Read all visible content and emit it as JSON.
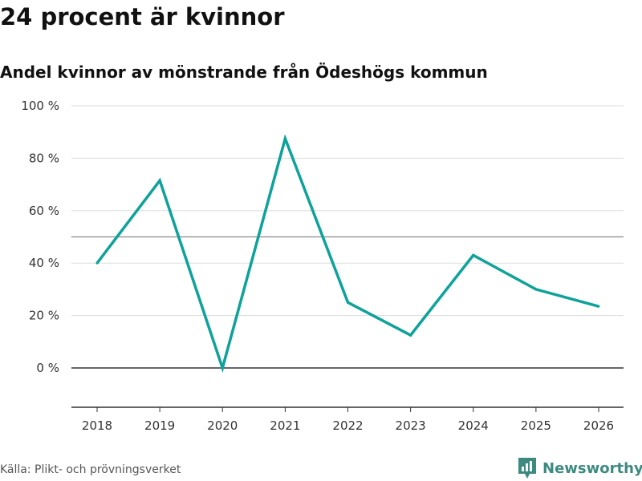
{
  "header": {
    "title": "24 procent är kvinnor",
    "subtitle": "Andel kvinnor av mönstrande från Ödeshögs kommun"
  },
  "footer": {
    "source": "Källa: Plikt- och prövningsverket",
    "brand": "Newsworthy"
  },
  "colors": {
    "line": "#0ea29a",
    "grid": "#dddddd",
    "reference": "#888888",
    "baseline": "#333333",
    "brand": "#3d8a80"
  },
  "chart_data": {
    "type": "line",
    "title": "24 procent är kvinnor",
    "subtitle": "Andel kvinnor av mönstrande från Ödeshögs kommun",
    "xlabel": "",
    "ylabel": "",
    "x": [
      "2018",
      "2019",
      "2020",
      "2021",
      "2022",
      "2023",
      "2024",
      "2025",
      "2026"
    ],
    "series": [
      {
        "name": "Andel kvinnor",
        "values": [
          40,
          71.5,
          0,
          87.5,
          25,
          12.5,
          43,
          30,
          23.5
        ]
      }
    ],
    "ylim": [
      -15,
      100
    ],
    "yticks": [
      0,
      20,
      40,
      60,
      80,
      100
    ],
    "ytick_labels": [
      "0 %",
      "20 %",
      "40 %",
      "60 %",
      "80 %",
      "100 %"
    ],
    "reference_line": 50,
    "grid": true,
    "legend": "none"
  }
}
